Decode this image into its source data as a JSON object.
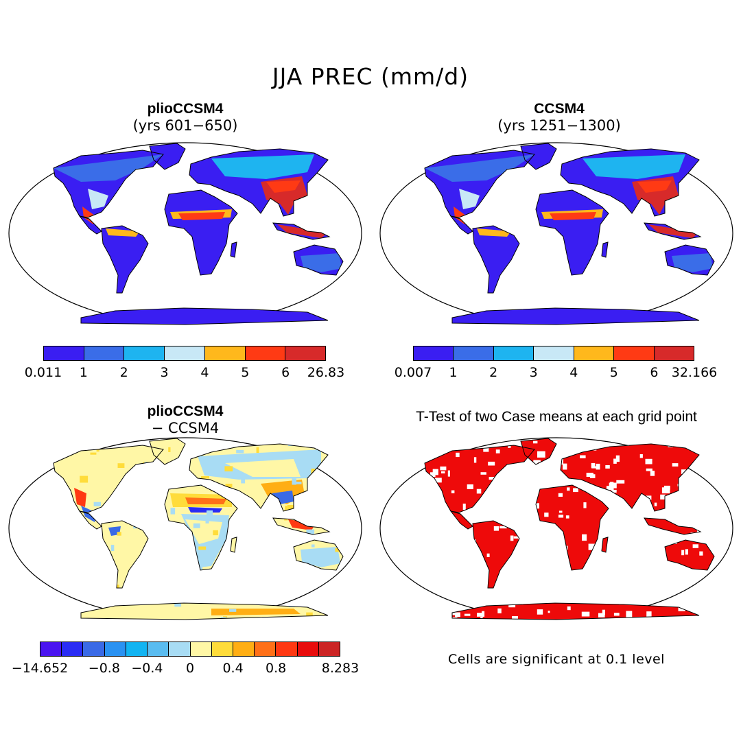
{
  "figure_title": "JJA PREC (mm/d)",
  "panels": [
    {
      "id": "plio",
      "title": "plioCCSM4",
      "subtitle": "(yrs 601−650)",
      "colorbar": {
        "colors": [
          "#3a1ef2",
          "#3a6de8",
          "#1eb4f0",
          "#c8e8f6",
          "#ffb81c",
          "#ff3a14",
          "#d72a2a"
        ],
        "labels": [
          "0.011",
          "1",
          "2",
          "3",
          "4",
          "5",
          "6",
          "26.83"
        ]
      }
    },
    {
      "id": "ccsm4",
      "title": "CCSM4",
      "subtitle": "(yrs 1251−1300)",
      "colorbar": {
        "colors": [
          "#3a1ef2",
          "#3a6de8",
          "#1eb4f0",
          "#c8e8f6",
          "#ffb81c",
          "#ff3a14",
          "#d72a2a"
        ],
        "labels": [
          "0.007",
          "1",
          "2",
          "3",
          "4",
          "5",
          "6",
          "32.166"
        ]
      }
    },
    {
      "id": "diff",
      "title": "plioCCSM4",
      "subtitle": "− CCSM4",
      "colorbar": {
        "colors": [
          "#4a14f0",
          "#2a2cf4",
          "#3a6ae6",
          "#2a92f2",
          "#12b4f2",
          "#5abcf0",
          "#a8dcf4",
          "#fff7a6",
          "#ffdc3a",
          "#ffae14",
          "#ff7018",
          "#ff3812",
          "#e80c0c",
          "#cc2424"
        ],
        "labels": [
          "−14.652",
          "−0.8",
          "−0.4",
          "0",
          "0.4",
          "0.8",
          "8.283"
        ]
      }
    },
    {
      "id": "ttest",
      "title": "T-Test of two Case means at each grid point",
      "note": "Cells are significant at 0.1 level",
      "significant_color": "#ee0a0a"
    }
  ]
}
